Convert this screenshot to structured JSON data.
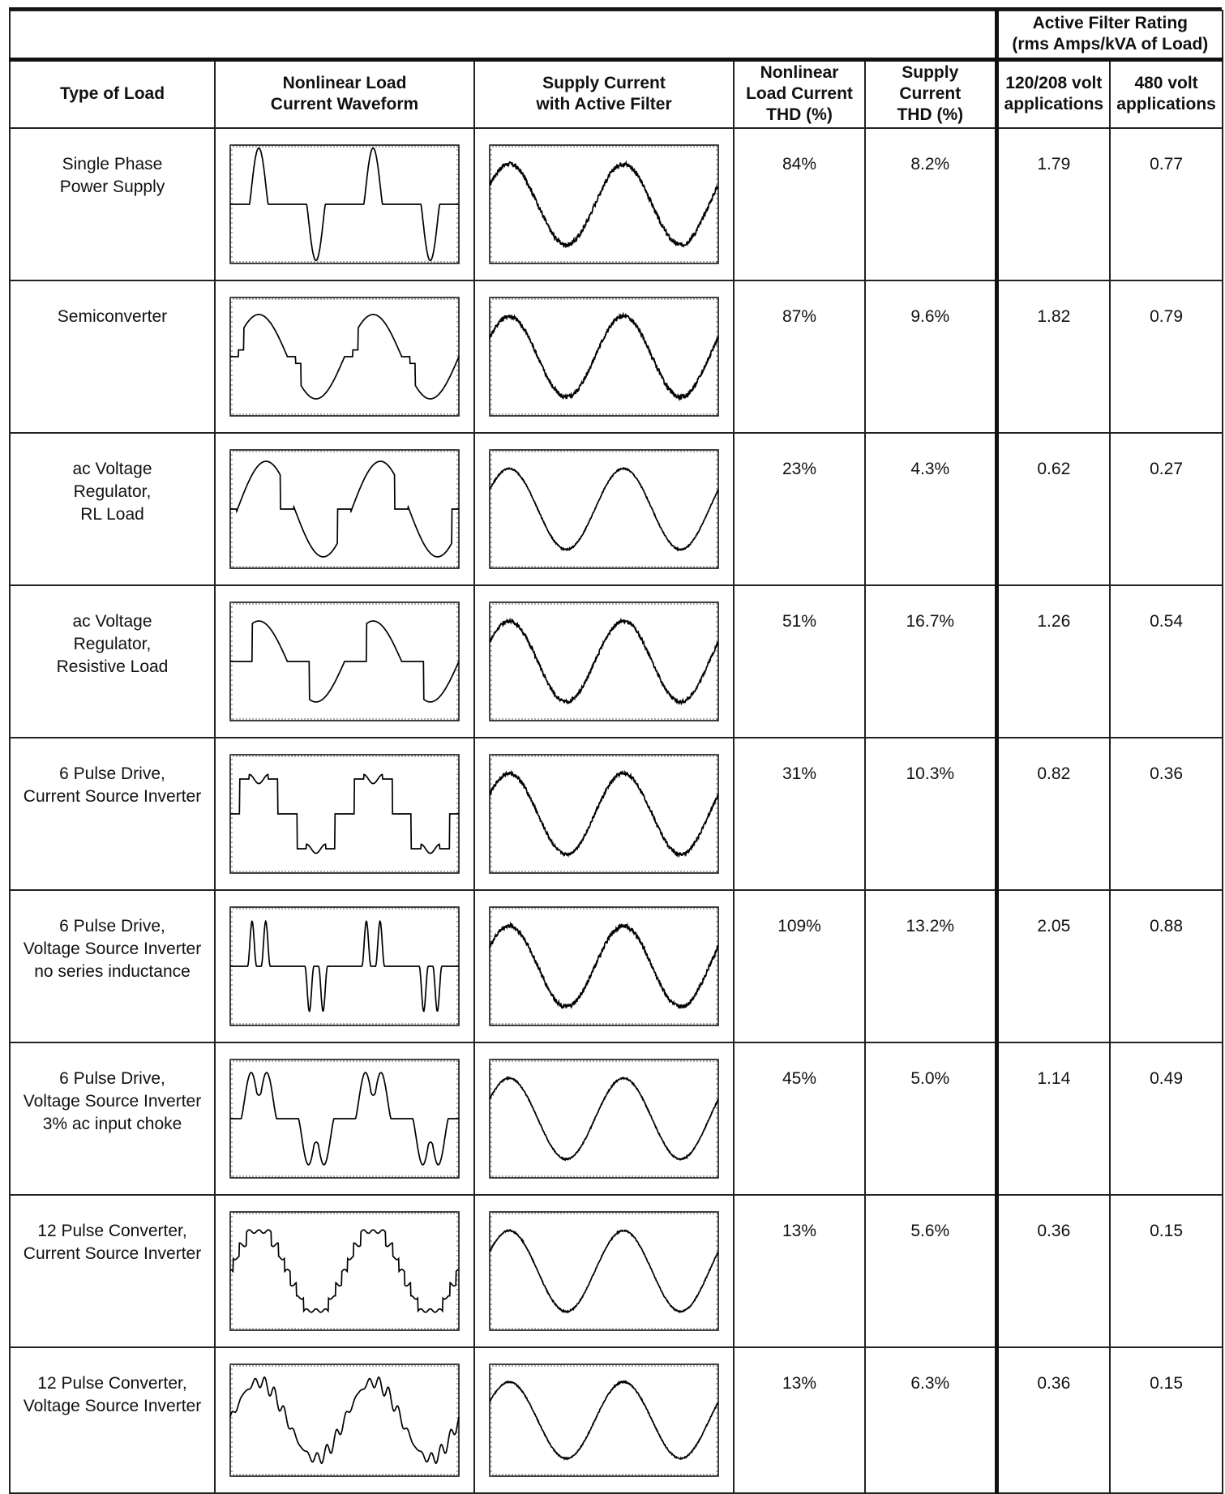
{
  "header": {
    "rating_group": [
      "Active Filter Rating",
      "(rms Amps/kVA of Load)"
    ],
    "col_type": "Type of Load",
    "col_load_wave": [
      "Nonlinear Load",
      "Current Waveform"
    ],
    "col_supply_wave": [
      "Supply Current",
      "with Active Filter"
    ],
    "col_load_thd": [
      "Nonlinear",
      "Load Current",
      "THD (%)"
    ],
    "col_supply_thd": [
      "Supply",
      "Current",
      "THD (%)"
    ],
    "col_120": [
      "120/208 volt",
      "applications"
    ],
    "col_480": [
      "480 volt",
      "applications"
    ]
  },
  "rows": [
    {
      "label": [
        "Single Phase",
        "Power Supply"
      ],
      "load_thd": "84%",
      "supply_thd": "8.2%",
      "r120": "1.79",
      "r480": "0.77",
      "wave": "single-phase-rectifier",
      "supply_wave": "filtered-sine-noisy"
    },
    {
      "label": [
        "Semiconverter"
      ],
      "load_thd": "87%",
      "supply_thd": "9.6%",
      "r120": "1.82",
      "r480": "0.79",
      "wave": "semiconverter",
      "supply_wave": "filtered-sine-noisy"
    },
    {
      "label": [
        "ac Voltage",
        "Regulator,",
        "RL Load"
      ],
      "load_thd": "23%",
      "supply_thd": "4.3%",
      "r120": "0.62",
      "r480": "0.27",
      "wave": "ac-regulator-rl",
      "supply_wave": "filtered-sine-clean"
    },
    {
      "label": [
        "ac Voltage",
        "Regulator,",
        "Resistive Load"
      ],
      "load_thd": "51%",
      "supply_thd": "16.7%",
      "r120": "1.26",
      "r480": "0.54",
      "wave": "ac-regulator-resistive",
      "supply_wave": "filtered-sine-spikes"
    },
    {
      "label": [
        "6 Pulse Drive,",
        "Current Source Inverter"
      ],
      "load_thd": "31%",
      "supply_thd": "10.3%",
      "r120": "0.82",
      "r480": "0.36",
      "wave": "six-pulse-csi",
      "supply_wave": "filtered-sine-spikes"
    },
    {
      "label": [
        "6 Pulse Drive,",
        "Voltage Source Inverter",
        "no series inductance"
      ],
      "load_thd": "109%",
      "supply_thd": "13.2%",
      "r120": "2.05",
      "r480": "0.88",
      "wave": "six-pulse-vsi-no-choke",
      "supply_wave": "filtered-sine-noisy"
    },
    {
      "label": [
        "6 Pulse Drive,",
        "Voltage Source Inverter",
        "3% ac input choke"
      ],
      "load_thd": "45%",
      "supply_thd": "5.0%",
      "r120": "1.14",
      "r480": "0.49",
      "wave": "six-pulse-vsi-choke",
      "supply_wave": "filtered-sine-clean"
    },
    {
      "label": [
        "12 Pulse Converter,",
        "Current Source Inverter"
      ],
      "load_thd": "13%",
      "supply_thd": "5.6%",
      "r120": "0.36",
      "r480": "0.15",
      "wave": "twelve-pulse-csi",
      "supply_wave": "filtered-sine-clean"
    },
    {
      "label": [
        "12 Pulse Converter,",
        "Voltage Source Inverter"
      ],
      "load_thd": "13%",
      "supply_thd": "6.3%",
      "r120": "0.36",
      "r480": "0.15",
      "wave": "twelve-pulse-vsi",
      "supply_wave": "filtered-sine-clean"
    }
  ]
}
